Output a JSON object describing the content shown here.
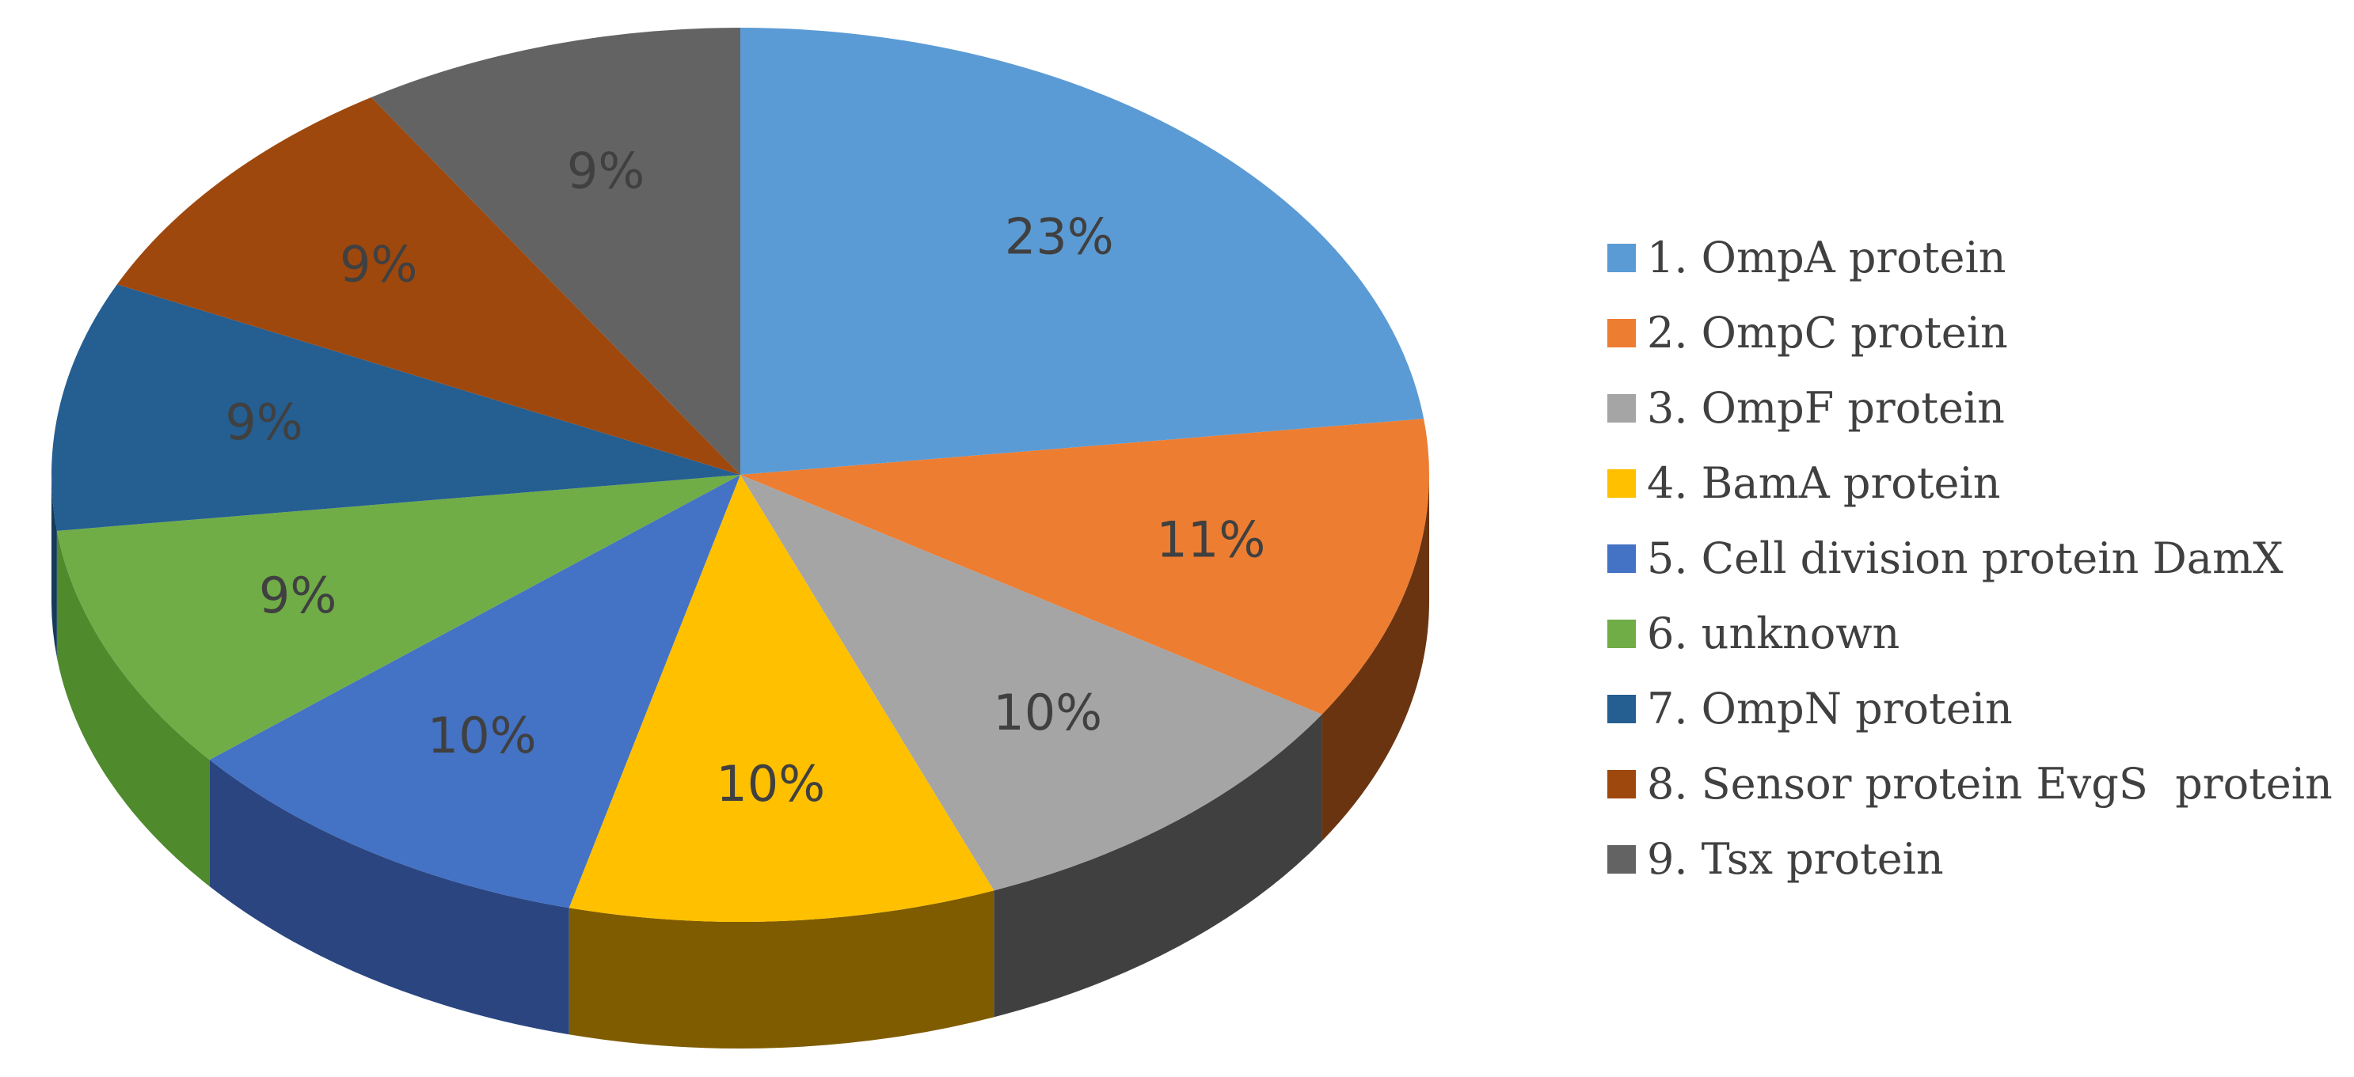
{
  "chart_data": {
    "type": "pie",
    "style": "3d-pie",
    "legend_position": "right",
    "slices": [
      {
        "label": "1. OmpA protein",
        "value": 23,
        "value_label": "23%",
        "color": "#5b9bd5",
        "side_color": "#3f6c95"
      },
      {
        "label": "2. OmpC protein",
        "value": 11,
        "value_label": "11%",
        "color": "#ed7d31",
        "side_color": "#6b3410"
      },
      {
        "label": "3. OmpF protein",
        "value": 10,
        "value_label": "10%",
        "color": "#a5a5a5",
        "side_color": "#404040"
      },
      {
        "label": "4. BamA protein",
        "value": 10,
        "value_label": "10%",
        "color": "#ffc000",
        "side_color": "#7f5c00"
      },
      {
        "label": "5. Cell division protein DamX",
        "value": 10,
        "value_label": "10%",
        "color": "#4472c4",
        "side_color": "#2a4580"
      },
      {
        "label": "6. unknown",
        "value": 9,
        "value_label": "9%",
        "color": "#70ad47",
        "side_color": "#4f8a2c"
      },
      {
        "label": "7. OmpN protein",
        "value": 9,
        "value_label": "9%",
        "color": "#255e91",
        "side_color": "#163a5a"
      },
      {
        "label": "8. Sensor protein EvgS  protein",
        "value": 9,
        "value_label": "9%",
        "color": "#9e480e",
        "side_color": "#5e2b08"
      },
      {
        "label": "9. Tsx protein",
        "value": 9,
        "value_label": "9%",
        "color": "#636363",
        "side_color": "#3a3a3a"
      }
    ]
  }
}
